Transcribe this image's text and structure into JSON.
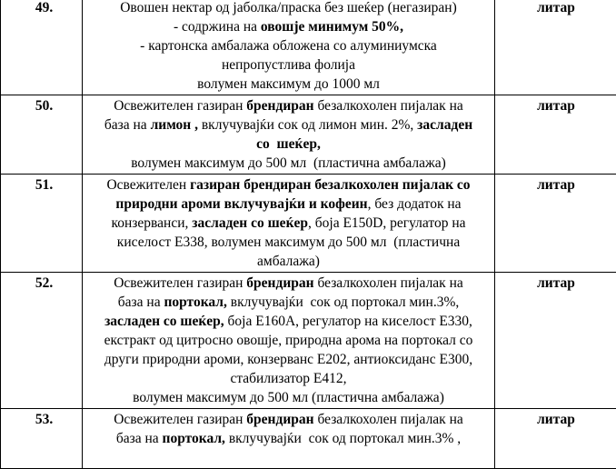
{
  "rows": [
    {
      "num": "49.",
      "unit": "литар",
      "lines": [
        [
          {
            "t": "Овошен нектар од јаболка/праска без шеќер (негазиран)",
            "b": false
          }
        ],
        [
          {
            "t": "- содржина на ",
            "b": false
          },
          {
            "t": "овошје минимум 50%,",
            "b": true
          }
        ],
        [
          {
            "t": "- картонска амбалажа обложена со алуминиумска",
            "b": false
          }
        ],
        [
          {
            "t": "непропустлива фолија",
            "b": false
          }
        ],
        [
          {
            "t": "волумен максимум до 1000 мл",
            "b": false
          }
        ]
      ]
    },
    {
      "num": "50.",
      "unit": "литар",
      "lines": [
        [
          {
            "t": "Освежителен газиран ",
            "b": false
          },
          {
            "t": "брендиран",
            "b": true
          },
          {
            "t": " безалкохолен пијалак на",
            "b": false
          }
        ],
        [
          {
            "t": "база на ",
            "b": false
          },
          {
            "t": "лимон ,",
            "b": true
          },
          {
            "t": " вклучувајќи сок од лимон мин. 2%, ",
            "b": false
          },
          {
            "t": "засладен",
            "b": true
          }
        ],
        [
          {
            "t": "со  шеќер,",
            "b": true
          }
        ],
        [
          {
            "t": "волумен максимум до 500 мл  (пластична амбалажа)",
            "b": false
          }
        ]
      ]
    },
    {
      "num": "51.",
      "unit": "литар",
      "lines": [
        [
          {
            "t": "Освежителен ",
            "b": false
          },
          {
            "t": "газиран брендиран безалкохолен пијалак со",
            "b": true
          }
        ],
        [
          {
            "t": "природни ароми вклучувајќи и кофеин",
            "b": true
          },
          {
            "t": ", без додаток на",
            "b": false
          }
        ],
        [
          {
            "t": "конзерванси, ",
            "b": false
          },
          {
            "t": "засладен со шеќер",
            "b": true
          },
          {
            "t": ", боја Е150D, регулатор на",
            "b": false
          }
        ],
        [
          {
            "t": "киселост Е338, волумен максимум до 500 мл  (пластична",
            "b": false
          }
        ],
        [
          {
            "t": "амбалажа)",
            "b": false
          }
        ]
      ]
    },
    {
      "num": "52.",
      "unit": "литар",
      "lines": [
        [
          {
            "t": "Освежителен газиран ",
            "b": false
          },
          {
            "t": "брендиран",
            "b": true
          },
          {
            "t": " безалкохолен пијалак на",
            "b": false
          }
        ],
        [
          {
            "t": "база на ",
            "b": false
          },
          {
            "t": "портокал,",
            "b": true
          },
          {
            "t": " вклучувајќи  сок од портокал мин.3%,",
            "b": false
          }
        ],
        [
          {
            "t": "засладен со шеќер,",
            "b": true
          },
          {
            "t": " боја Е160А, регулатор на киселост Е330,",
            "b": false
          }
        ],
        [
          {
            "t": "екстракт од цитросно овошје, природна арома на портокал со",
            "b": false
          }
        ],
        [
          {
            "t": "други природни ароми, конзерванс Е202, антиоксиданс Е300,",
            "b": false
          }
        ],
        [
          {
            "t": "стабилизатор Е412,",
            "b": false
          }
        ],
        [
          {
            "t": "волумен максимум до 500 мл (пластична амбалажа)",
            "b": false
          }
        ]
      ]
    },
    {
      "num": "53.",
      "unit": "литар",
      "lines": [
        [
          {
            "t": "Освежителен газиран ",
            "b": false
          },
          {
            "t": "брендиран",
            "b": true
          },
          {
            "t": " безалкохолен пијалак на",
            "b": false
          }
        ],
        [
          {
            "t": "база на ",
            "b": false
          },
          {
            "t": "портокал,",
            "b": true
          },
          {
            "t": " вклучувајќи  сок од портокал мин.3% ,",
            "b": false
          }
        ],
        [
          {
            "t": " ",
            "b": false
          }
        ]
      ]
    }
  ]
}
